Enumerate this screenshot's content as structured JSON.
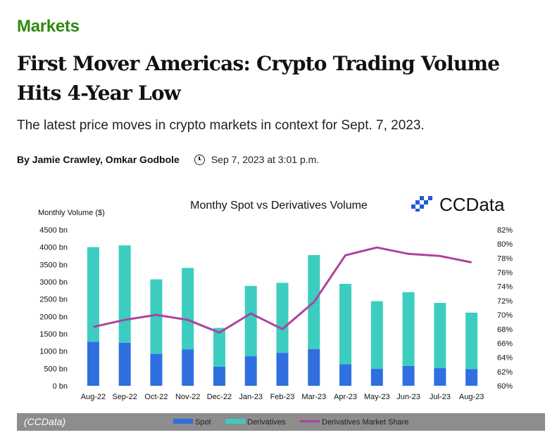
{
  "section": "Markets",
  "article": {
    "headline": "First Mover Americas: Crypto Trading Volume Hits 4-Year Low",
    "subtitle": "The latest price moves in crypto markets in context for Sept. 7, 2023.",
    "authors": "By Jamie Crawley, Omkar Godbole",
    "timestamp": "Sep 7, 2023 at 3:01 p.m.",
    "caption": "(CCData)"
  },
  "icons": {
    "clock": "clock-icon",
    "logo": "ccdata-logo-icon"
  },
  "colors": {
    "section": "#2d8a0f",
    "spot": "#2f6fe0",
    "derivatives": "#3ccdc0",
    "share": "#b0429c",
    "caption_bar": "#8d8d8d"
  },
  "chart_data": {
    "type": "bar",
    "title": "Monthy Spot vs Derivatives Volume",
    "brand": "CCData",
    "ylabel": "Monthly Volume ($)",
    "categories": [
      "Aug-22",
      "Sep-22",
      "Oct-22",
      "Nov-22",
      "Dec-22",
      "Jan-23",
      "Feb-23",
      "Mar-23",
      "Apr-23",
      "May-23",
      "Jun-23",
      "Jul-23",
      "Aug-23"
    ],
    "series": [
      {
        "name": "Spot",
        "kind": "stacked-bar",
        "values": [
          1270,
          1240,
          920,
          1050,
          550,
          850,
          950,
          1060,
          620,
          490,
          570,
          510,
          480
        ]
      },
      {
        "name": "Derivatives",
        "kind": "stacked-bar",
        "values": [
          2730,
          2810,
          2150,
          2350,
          1120,
          2030,
          2020,
          2710,
          2320,
          1950,
          2130,
          1880,
          1630
        ]
      },
      {
        "name": "Derivatives Market Share",
        "kind": "line",
        "axis": "right",
        "values": [
          68.3,
          69.3,
          70.0,
          69.3,
          67.5,
          70.2,
          68.0,
          71.8,
          78.4,
          79.5,
          78.6,
          78.3,
          77.4
        ]
      }
    ],
    "ylim": [
      0,
      4500
    ],
    "yticks": [
      "0 bn",
      "500 bn",
      "1000 bn",
      "1500 bn",
      "2000 bn",
      "2500 bn",
      "3000 bn",
      "3500 bn",
      "4000 bn",
      "4500 bn"
    ],
    "y2lim": [
      60,
      82
    ],
    "y2ticks": [
      "60%",
      "62%",
      "64%",
      "66%",
      "68%",
      "70%",
      "72%",
      "74%",
      "76%",
      "78%",
      "80%",
      "82%"
    ],
    "grid": false,
    "legend": "bottom",
    "legend_items": [
      "Spot",
      "Derivatives",
      "Derivatives Market Share"
    ]
  }
}
